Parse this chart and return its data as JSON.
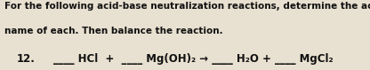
{
  "bg_color": "#e8e0d0",
  "text_color": "#111111",
  "header_line1": "For the following acid-base neutralization reactions, determine the acid,",
  "header_line2": "name of each. Then balance the reaction.",
  "problem_num": "12.",
  "blank": "____",
  "eq_parts": [
    {
      "text": "HCl + ",
      "style": "normal"
    },
    {
      "text": "Mg(OH)",
      "style": "normal"
    },
    {
      "text": "2",
      "style": "sub"
    },
    {
      "text": " → ",
      "style": "normal"
    },
    {
      "text": "H",
      "style": "normal"
    },
    {
      "text": "2",
      "style": "sub"
    },
    {
      "text": "O + ",
      "style": "normal"
    },
    {
      "text": "MgCl",
      "style": "normal"
    },
    {
      "text": "2",
      "style": "sub"
    }
  ],
  "figsize": [
    4.16,
    0.79
  ],
  "dpi": 100,
  "header_fontsize": 7.5,
  "eq_fontsize": 8.5
}
